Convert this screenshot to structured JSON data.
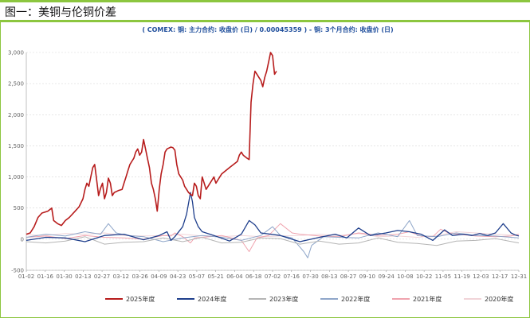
{
  "header": {
    "title": "图一：美铜与伦铜价差"
  },
  "colors": {
    "series": [
      "#b71c1c",
      "#1f3f8c",
      "#b5b5b5",
      "#8fa6c9",
      "#f0a3ae",
      "#f1d4d8"
    ],
    "grid": "#d8d8d8",
    "accent_green": "#8cc63f"
  },
  "chart_data": {
    "type": "line",
    "title": "( COMEX: 铜: 主力合约: 收盘价 (日) / 0.00045359 ) - 铜: 3个月合约: 收盘价 (日)",
    "xlabel": "",
    "ylabel": "",
    "ylim": [
      -500,
      3000
    ],
    "yticks": [
      -500,
      0,
      500,
      1000,
      1500,
      2000,
      2500,
      3000
    ],
    "ytick_labels": [
      "-500",
      "0",
      "500",
      "1,000",
      "1,500",
      "2,000",
      "2,500",
      "3,000"
    ],
    "xticks": [
      "01-02",
      "01-16",
      "01-30",
      "02-13",
      "02-27",
      "03-12",
      "03-26",
      "04-09",
      "04-23",
      "05-07",
      "05-21",
      "06-04",
      "06-18",
      "07-02",
      "07-16",
      "07-30",
      "08-13",
      "08-27",
      "09-10",
      "09-24",
      "10-08",
      "10-22",
      "11-05",
      "11-19",
      "12-03",
      "12-17",
      "12-31"
    ],
    "grid": true,
    "legend_position": "bottom",
    "series": [
      {
        "name": "2025年度",
        "points": [
          [
            0,
            80
          ],
          [
            2,
            100
          ],
          [
            4,
            200
          ],
          [
            6,
            350
          ],
          [
            8,
            420
          ],
          [
            11,
            450
          ],
          [
            13,
            500
          ],
          [
            14,
            300
          ],
          [
            16,
            250
          ],
          [
            18,
            220
          ],
          [
            20,
            300
          ],
          [
            22,
            350
          ],
          [
            25,
            450
          ],
          [
            27,
            520
          ],
          [
            29,
            650
          ],
          [
            30,
            800
          ],
          [
            31,
            900
          ],
          [
            32,
            850
          ],
          [
            33,
            1000
          ],
          [
            34,
            1150
          ],
          [
            35,
            1200
          ],
          [
            36,
            950
          ],
          [
            37,
            700
          ],
          [
            38,
            820
          ],
          [
            39,
            900
          ],
          [
            40,
            650
          ],
          [
            41,
            750
          ],
          [
            42,
            980
          ],
          [
            43,
            900
          ],
          [
            44,
            700
          ],
          [
            45,
            750
          ],
          [
            47,
            780
          ],
          [
            49,
            800
          ],
          [
            50,
            900
          ],
          [
            51,
            1000
          ],
          [
            52,
            1100
          ],
          [
            53,
            1200
          ],
          [
            54,
            1250
          ],
          [
            55,
            1300
          ],
          [
            56,
            1400
          ],
          [
            57,
            1450
          ],
          [
            58,
            1350
          ],
          [
            59,
            1400
          ],
          [
            60,
            1600
          ],
          [
            61,
            1450
          ],
          [
            62,
            1300
          ],
          [
            63,
            1150
          ],
          [
            64,
            900
          ],
          [
            65,
            800
          ],
          [
            66,
            650
          ],
          [
            67,
            450
          ],
          [
            68,
            800
          ],
          [
            69,
            1050
          ],
          [
            70,
            1200
          ],
          [
            71,
            1400
          ],
          [
            72,
            1450
          ],
          [
            74,
            1480
          ],
          [
            75,
            1470
          ],
          [
            76,
            1430
          ],
          [
            77,
            1200
          ],
          [
            78,
            1050
          ],
          [
            79,
            1000
          ],
          [
            80,
            950
          ],
          [
            81,
            850
          ],
          [
            82,
            800
          ],
          [
            83,
            750
          ],
          [
            84,
            720
          ],
          [
            85,
            700
          ],
          [
            86,
            900
          ],
          [
            87,
            850
          ],
          [
            88,
            700
          ],
          [
            89,
            650
          ],
          [
            90,
            1000
          ],
          [
            91,
            900
          ],
          [
            92,
            800
          ],
          [
            93,
            850
          ],
          [
            94,
            900
          ],
          [
            95,
            950
          ],
          [
            96,
            1000
          ],
          [
            97,
            900
          ],
          [
            98,
            950
          ],
          [
            100,
            1050
          ],
          [
            102,
            1100
          ],
          [
            104,
            1150
          ],
          [
            106,
            1200
          ],
          [
            108,
            1250
          ],
          [
            109,
            1350
          ],
          [
            110,
            1400
          ],
          [
            111,
            1350
          ],
          [
            113,
            1300
          ],
          [
            114,
            1280
          ],
          [
            115,
            2200
          ],
          [
            116,
            2500
          ],
          [
            117,
            2700
          ],
          [
            118,
            2650
          ],
          [
            119,
            2600
          ],
          [
            120,
            2550
          ],
          [
            121,
            2450
          ],
          [
            122,
            2600
          ],
          [
            123,
            2700
          ],
          [
            124,
            2850
          ],
          [
            125,
            3000
          ],
          [
            126,
            2950
          ],
          [
            127,
            2650
          ],
          [
            128,
            2700
          ]
        ]
      },
      {
        "name": "2024年度",
        "points": [
          [
            0,
            -20
          ],
          [
            10,
            30
          ],
          [
            20,
            20
          ],
          [
            30,
            -40
          ],
          [
            40,
            60
          ],
          [
            50,
            80
          ],
          [
            60,
            -10
          ],
          [
            68,
            60
          ],
          [
            72,
            120
          ],
          [
            74,
            -20
          ],
          [
            76,
            40
          ],
          [
            80,
            200
          ],
          [
            82,
            400
          ],
          [
            84,
            750
          ],
          [
            85,
            600
          ],
          [
            86,
            350
          ],
          [
            88,
            200
          ],
          [
            90,
            120
          ],
          [
            96,
            60
          ],
          [
            104,
            -30
          ],
          [
            110,
            80
          ],
          [
            114,
            300
          ],
          [
            117,
            230
          ],
          [
            120,
            100
          ],
          [
            130,
            60
          ],
          [
            140,
            -40
          ],
          [
            150,
            30
          ],
          [
            158,
            80
          ],
          [
            164,
            20
          ],
          [
            170,
            180
          ],
          [
            176,
            60
          ],
          [
            184,
            100
          ],
          [
            190,
            140
          ],
          [
            196,
            120
          ],
          [
            202,
            80
          ],
          [
            208,
            -20
          ],
          [
            214,
            150
          ],
          [
            218,
            60
          ],
          [
            224,
            80
          ],
          [
            228,
            60
          ],
          [
            232,
            90
          ],
          [
            236,
            60
          ],
          [
            240,
            100
          ],
          [
            244,
            250
          ],
          [
            248,
            100
          ],
          [
            250,
            70
          ],
          [
            252,
            50
          ]
        ]
      },
      {
        "name": "2023年度",
        "points": [
          [
            0,
            -40
          ],
          [
            10,
            -60
          ],
          [
            20,
            -30
          ],
          [
            30,
            40
          ],
          [
            40,
            -80
          ],
          [
            50,
            -50
          ],
          [
            60,
            -40
          ],
          [
            70,
            20
          ],
          [
            80,
            -40
          ],
          [
            90,
            30
          ],
          [
            100,
            -60
          ],
          [
            110,
            -50
          ],
          [
            120,
            20
          ],
          [
            130,
            10
          ],
          [
            140,
            -80
          ],
          [
            150,
            -30
          ],
          [
            160,
            -80
          ],
          [
            170,
            -60
          ],
          [
            180,
            20
          ],
          [
            190,
            -50
          ],
          [
            200,
            -70
          ],
          [
            210,
            -100
          ],
          [
            220,
            -30
          ],
          [
            230,
            -20
          ],
          [
            240,
            10
          ],
          [
            252,
            -60
          ]
        ]
      },
      {
        "name": "2022年度",
        "points": [
          [
            0,
            30
          ],
          [
            10,
            80
          ],
          [
            20,
            50
          ],
          [
            30,
            120
          ],
          [
            38,
            80
          ],
          [
            42,
            250
          ],
          [
            46,
            100
          ],
          [
            52,
            60
          ],
          [
            60,
            40
          ],
          [
            70,
            -40
          ],
          [
            80,
            20
          ],
          [
            90,
            60
          ],
          [
            100,
            30
          ],
          [
            110,
            -20
          ],
          [
            120,
            60
          ],
          [
            126,
            200
          ],
          [
            130,
            60
          ],
          [
            136,
            20
          ],
          [
            142,
            -200
          ],
          [
            144,
            -300
          ],
          [
            146,
            -100
          ],
          [
            152,
            40
          ],
          [
            160,
            30
          ],
          [
            170,
            20
          ],
          [
            180,
            100
          ],
          [
            190,
            40
          ],
          [
            196,
            300
          ],
          [
            200,
            60
          ],
          [
            210,
            40
          ],
          [
            220,
            100
          ],
          [
            230,
            60
          ],
          [
            240,
            50
          ],
          [
            252,
            20
          ]
        ]
      },
      {
        "name": "2021年度",
        "points": [
          [
            0,
            30
          ],
          [
            10,
            50
          ],
          [
            20,
            10
          ],
          [
            30,
            60
          ],
          [
            40,
            30
          ],
          [
            50,
            20
          ],
          [
            60,
            0
          ],
          [
            70,
            60
          ],
          [
            74,
            50
          ],
          [
            76,
            100
          ],
          [
            80,
            40
          ],
          [
            84,
            -60
          ],
          [
            86,
            20
          ],
          [
            90,
            30
          ],
          [
            100,
            60
          ],
          [
            110,
            -20
          ],
          [
            114,
            -200
          ],
          [
            118,
            20
          ],
          [
            124,
            60
          ],
          [
            130,
            250
          ],
          [
            136,
            100
          ],
          [
            140,
            80
          ],
          [
            150,
            50
          ],
          [
            160,
            40
          ],
          [
            170,
            100
          ],
          [
            176,
            80
          ],
          [
            180,
            60
          ],
          [
            190,
            80
          ],
          [
            196,
            120
          ],
          [
            202,
            50
          ],
          [
            208,
            40
          ],
          [
            212,
            160
          ],
          [
            216,
            100
          ],
          [
            224,
            70
          ],
          [
            230,
            50
          ],
          [
            240,
            40
          ],
          [
            248,
            50
          ],
          [
            252,
            80
          ]
        ]
      },
      {
        "name": "2020年度",
        "points": [
          [
            0,
            70
          ],
          [
            10,
            60
          ],
          [
            20,
            90
          ],
          [
            30,
            80
          ],
          [
            40,
            100
          ],
          [
            50,
            60
          ],
          [
            60,
            50
          ],
          [
            70,
            60
          ],
          [
            80,
            80
          ],
          [
            90,
            50
          ],
          [
            100,
            40
          ],
          [
            110,
            60
          ],
          [
            120,
            40
          ],
          [
            130,
            50
          ],
          [
            140,
            60
          ],
          [
            150,
            80
          ],
          [
            160,
            60
          ],
          [
            170,
            90
          ],
          [
            180,
            40
          ],
          [
            190,
            50
          ],
          [
            200,
            30
          ],
          [
            210,
            60
          ],
          [
            220,
            120
          ],
          [
            230,
            100
          ],
          [
            240,
            80
          ],
          [
            252,
            60
          ]
        ]
      }
    ]
  }
}
